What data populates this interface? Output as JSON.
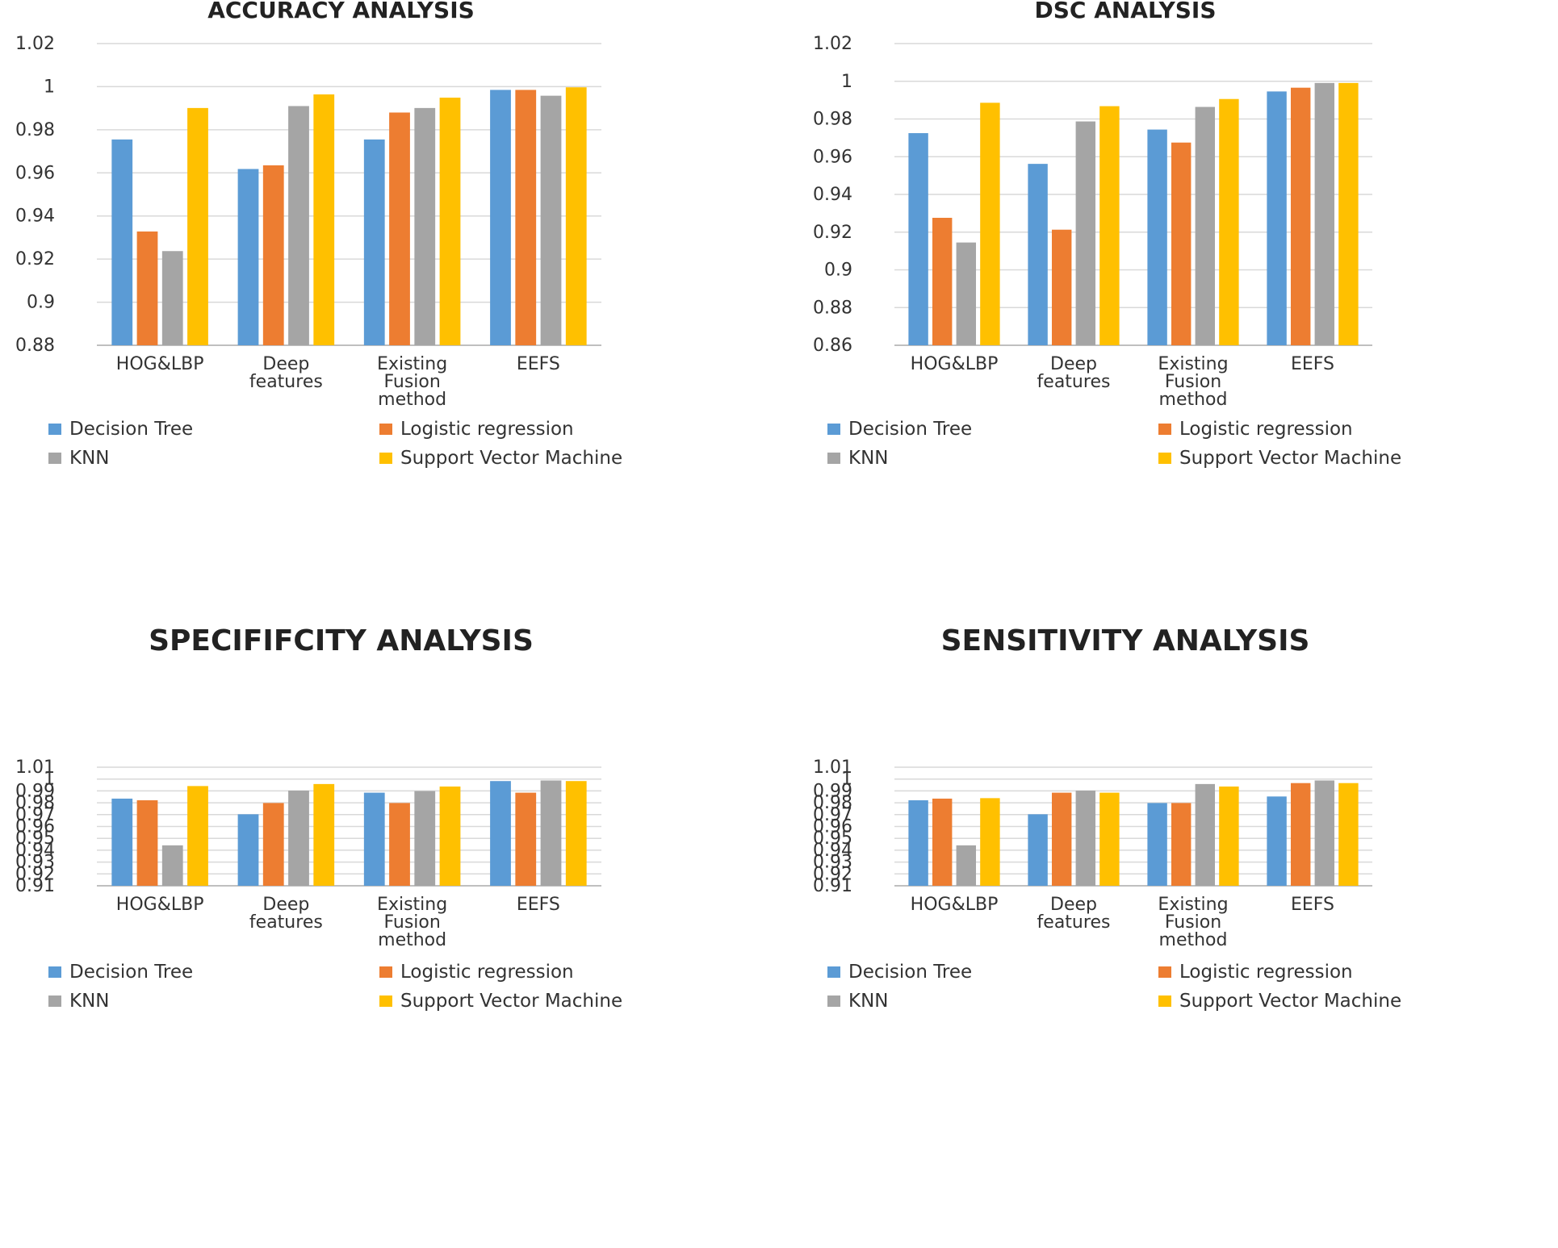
{
  "colors": {
    "decision_tree": "#5B9BD5",
    "logistic_regression": "#ED7D31",
    "knn": "#A5A5A5",
    "svm": "#FFC000"
  },
  "chart_data": [
    {
      "type": "bar",
      "title": "ACCURACY ANALYSIS",
      "categories": [
        [
          "HOG&LBP"
        ],
        [
          "Deep",
          "features"
        ],
        [
          "Existing",
          "Fusion",
          "method"
        ],
        [
          "EEFS"
        ]
      ],
      "yticks": [
        "0.88",
        "0.9",
        "0.92",
        "0.94",
        "0.96",
        "0.98",
        "1",
        "1.02"
      ],
      "ylim": [
        0.88,
        1.02
      ],
      "grid": true,
      "legend_position": "bottom",
      "series": [
        {
          "name": "Decision Tree",
          "values": [
            0.9755,
            0.9618,
            0.9755,
            0.9985
          ]
        },
        {
          "name": "Logistic regression",
          "values": [
            0.9328,
            0.9635,
            0.988,
            0.9985
          ]
        },
        {
          "name": "KNN",
          "values": [
            0.9237,
            0.991,
            0.9901,
            0.9958
          ]
        },
        {
          "name": "Support Vector Machine",
          "values": [
            0.9901,
            0.9964,
            0.9949,
            0.9997
          ]
        }
      ]
    },
    {
      "type": "bar",
      "title": "DSC ANALYSIS",
      "categories": [
        [
          "HOG&LBP"
        ],
        [
          "Deep",
          "features"
        ],
        [
          "Existing",
          "Fusion",
          "method"
        ],
        [
          "EEFS"
        ]
      ],
      "yticks": [
        "0.86",
        "0.88",
        "0.9",
        "0.92",
        "0.94",
        "0.96",
        "0.98",
        "1",
        "1.02"
      ],
      "ylim": [
        0.86,
        1.02
      ],
      "grid": true,
      "legend_position": "bottom",
      "series": [
        {
          "name": "Decision Tree",
          "values": [
            0.9725,
            0.9562,
            0.9744,
            0.9946
          ]
        },
        {
          "name": "Logistic regression",
          "values": [
            0.9276,
            0.9213,
            0.9675,
            0.9966
          ]
        },
        {
          "name": "KNN",
          "values": [
            0.9145,
            0.9787,
            0.9864,
            0.9991
          ]
        },
        {
          "name": "Support Vector Machine",
          "values": [
            0.9886,
            0.9868,
            0.9906,
            0.9991
          ]
        }
      ]
    },
    {
      "type": "bar",
      "title": "SPECIFIFCITY ANALYSIS",
      "categories": [
        [
          "HOG&LBP"
        ],
        [
          "Deep",
          "features"
        ],
        [
          "Existing",
          "Fusion",
          "method"
        ],
        [
          "EEFS"
        ]
      ],
      "yticks": [
        "0.91",
        "0.92",
        "0.93",
        "0.94",
        "0.95",
        "0.96",
        "0.97",
        "0.98",
        "0.99",
        "1",
        "1.01"
      ],
      "ylim": [
        0.91,
        1.01
      ],
      "grid": true,
      "legend_position": "bottom",
      "series": [
        {
          "name": "Decision Tree",
          "values": [
            0.9835,
            0.9703,
            0.9885,
            0.9983
          ]
        },
        {
          "name": "Logistic regression",
          "values": [
            0.9821,
            0.9798,
            0.9798,
            0.9885
          ]
        },
        {
          "name": "KNN",
          "values": [
            0.9441,
            0.9903,
            0.9899,
            0.9988
          ]
        },
        {
          "name": "Support Vector Machine",
          "values": [
            0.9941,
            0.9958,
            0.9937,
            0.9983
          ]
        }
      ]
    },
    {
      "type": "bar",
      "title": "SENSITIVITY ANALYSIS",
      "categories": [
        [
          "HOG&LBP"
        ],
        [
          "Deep",
          "features"
        ],
        [
          "Existing",
          "Fusion",
          "method"
        ],
        [
          "EEFS"
        ]
      ],
      "yticks": [
        "0.91",
        "0.92",
        "0.93",
        "0.94",
        "0.95",
        "0.96",
        "0.97",
        "0.98",
        "0.99",
        "1",
        "1.01"
      ],
      "ylim": [
        0.91,
        1.01
      ],
      "grid": true,
      "legend_position": "bottom",
      "series": [
        {
          "name": "Decision Tree",
          "values": [
            0.9821,
            0.9703,
            0.9798,
            0.9853
          ]
        },
        {
          "name": "Logistic regression",
          "values": [
            0.9835,
            0.9885,
            0.9798,
            0.9966
          ]
        },
        {
          "name": "KNN",
          "values": [
            0.9441,
            0.9903,
            0.9958,
            0.9988
          ]
        },
        {
          "name": "Support Vector Machine",
          "values": [
            0.9839,
            0.9885,
            0.9937,
            0.9966
          ]
        }
      ]
    }
  ]
}
